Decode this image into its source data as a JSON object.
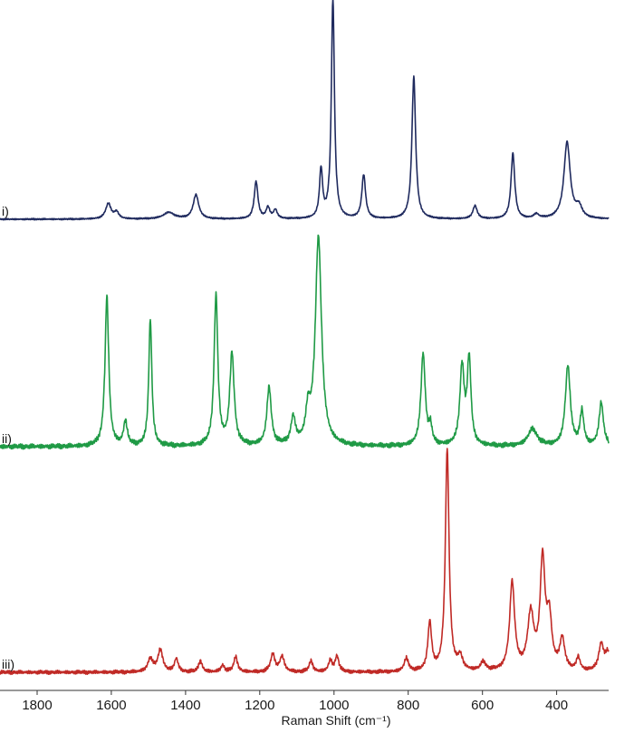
{
  "chart_data": {
    "type": "line",
    "xlabel": "Raman Shift (cm⁻¹)",
    "xlim": [
      1900,
      260
    ],
    "x_reversed": true,
    "ticks": [
      1800,
      1600,
      1400,
      1200,
      1000,
      800,
      600,
      400
    ],
    "tick_labels": [
      "1800",
      "1600",
      "1400",
      "1200",
      "1000",
      "800",
      "600",
      "400"
    ],
    "y_units": "relative intensity (stacked, offset traces)",
    "grid": false,
    "series": [
      {
        "label": "i)",
        "color": "#1f2a5e",
        "baseline": 0.0,
        "noise": 0.004,
        "peaks": [
          [
            1608,
            0.07,
            9
          ],
          [
            1586,
            0.03,
            7
          ],
          [
            1445,
            0.03,
            18
          ],
          [
            1372,
            0.11,
            9
          ],
          [
            1210,
            0.17,
            6
          ],
          [
            1178,
            0.05,
            6
          ],
          [
            1158,
            0.04,
            6
          ],
          [
            1035,
            0.22,
            5
          ],
          [
            1003,
            1.0,
            5
          ],
          [
            920,
            0.2,
            6
          ],
          [
            785,
            0.65,
            6
          ],
          [
            620,
            0.06,
            7
          ],
          [
            518,
            0.3,
            6
          ],
          [
            455,
            0.02,
            8
          ],
          [
            372,
            0.35,
            10
          ],
          [
            340,
            0.05,
            10
          ]
        ]
      },
      {
        "label": "ii)",
        "color": "#1f9a45",
        "baseline": 0.0,
        "noise": 0.012,
        "peaks": [
          [
            1612,
            0.62,
            6
          ],
          [
            1562,
            0.1,
            6
          ],
          [
            1495,
            0.52,
            5
          ],
          [
            1318,
            0.62,
            6
          ],
          [
            1275,
            0.38,
            7
          ],
          [
            1175,
            0.24,
            7
          ],
          [
            1110,
            0.11,
            7
          ],
          [
            1070,
            0.12,
            7
          ],
          [
            1042,
            0.86,
            10
          ],
          [
            760,
            0.38,
            7
          ],
          [
            740,
            0.07,
            5
          ],
          [
            655,
            0.32,
            7
          ],
          [
            636,
            0.35,
            6
          ],
          [
            465,
            0.07,
            15
          ],
          [
            370,
            0.33,
            8
          ],
          [
            332,
            0.14,
            6
          ],
          [
            280,
            0.18,
            7
          ]
        ]
      },
      {
        "label": "iii)",
        "color": "#c02a26",
        "baseline": 0.0,
        "noise": 0.01,
        "peaks": [
          [
            1495,
            0.06,
            8
          ],
          [
            1468,
            0.1,
            8
          ],
          [
            1425,
            0.06,
            6
          ],
          [
            1360,
            0.05,
            6
          ],
          [
            1300,
            0.03,
            6
          ],
          [
            1265,
            0.07,
            6
          ],
          [
            1165,
            0.08,
            7
          ],
          [
            1140,
            0.07,
            7
          ],
          [
            1062,
            0.05,
            6
          ],
          [
            1010,
            0.05,
            6
          ],
          [
            992,
            0.07,
            6
          ],
          [
            805,
            0.06,
            7
          ],
          [
            742,
            0.22,
            6
          ],
          [
            695,
            1.0,
            6
          ],
          [
            660,
            0.06,
            8
          ],
          [
            598,
            0.04,
            8
          ],
          [
            520,
            0.4,
            8
          ],
          [
            470,
            0.25,
            10
          ],
          [
            438,
            0.49,
            8
          ],
          [
            420,
            0.22,
            8
          ],
          [
            385,
            0.14,
            8
          ],
          [
            342,
            0.06,
            6
          ],
          [
            280,
            0.12,
            8
          ],
          [
            262,
            0.08,
            8
          ]
        ]
      }
    ]
  }
}
